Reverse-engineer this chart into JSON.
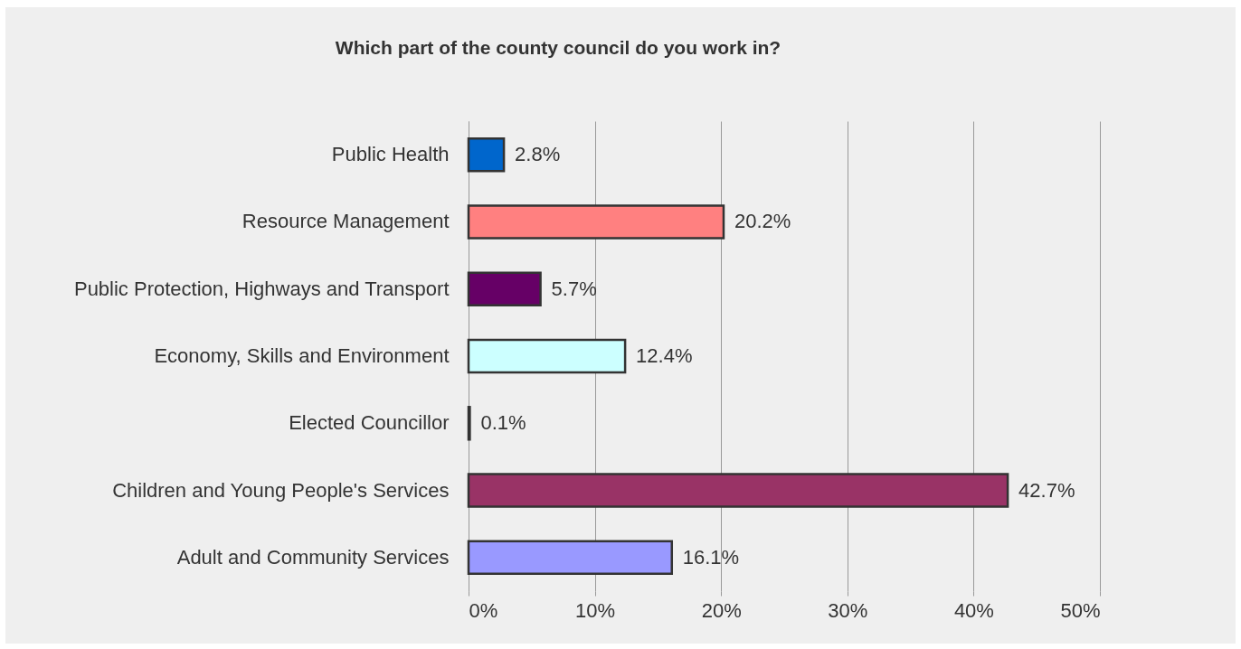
{
  "chart_data": {
    "type": "bar",
    "orientation": "horizontal",
    "title": "Which part of the county council do you work in?",
    "categories": [
      "Public Health",
      "Resource Management",
      "Public Protection, Highways and Transport",
      "Economy, Skills and Environment",
      "Elected Councillor",
      "Children and Young People's Services",
      "Adult and Community Services"
    ],
    "values": [
      2.8,
      20.2,
      5.7,
      12.4,
      0.1,
      42.7,
      16.1
    ],
    "colors": [
      "#0066cc",
      "#ff8080",
      "#660066",
      "#ccffff",
      "#333333",
      "#993366",
      "#9999ff"
    ],
    "value_labels": [
      "2.8%",
      "20.2%",
      "5.7%",
      "12.4%",
      "0.1%",
      "42.7%",
      "16.1%"
    ],
    "xlim": [
      0,
      50
    ],
    "xticks": [
      {
        "value": 0,
        "label": "0%"
      },
      {
        "value": 10,
        "label": "10%"
      },
      {
        "value": 20,
        "label": "20%"
      },
      {
        "value": 30,
        "label": "30%"
      },
      {
        "value": 40,
        "label": "40%"
      },
      {
        "value": 50,
        "label": "50%"
      }
    ],
    "grid": "x"
  }
}
